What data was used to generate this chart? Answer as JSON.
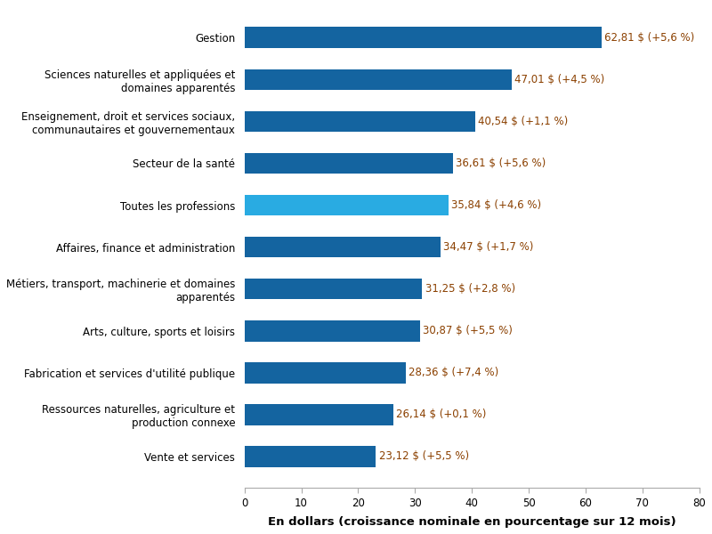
{
  "categories": [
    "Gestion",
    "Sciences naturelles et appliquées et\ndomaines apparentés",
    "Enseignement, droit et services sociaux,\ncommunautaires et gouvernementaux",
    "Secteur de la santé",
    "Toutes les professions",
    "Affaires, finance et administration",
    "Métiers, transport, machinerie et domaines\napparentés",
    "Arts, culture, sports et loisirs",
    "Fabrication et services d'utilité publique",
    "Ressources naturelles, agriculture et\nproduction connexe",
    "Vente et services"
  ],
  "values": [
    62.81,
    47.01,
    40.54,
    36.61,
    35.84,
    34.47,
    31.25,
    30.87,
    28.36,
    26.14,
    23.12
  ],
  "labels": [
    "62,81 $ (+5,6 %)",
    "47,01 $ (+4,5 %)",
    "40,54 $ (+1,1 %)",
    "36,61 $ (+5,6 %)",
    "35,84 $ (+4,6 %)",
    "34,47 $ (+1,7 %)",
    "31,25 $ (+2,8 %)",
    "30,87 $ (+5,5 %)",
    "28,36 $ (+7,4 %)",
    "26,14 $ (+0,1 %)",
    "23,12 $ (+5,5 %)"
  ],
  "bar_colors": [
    "#1464a0",
    "#1464a0",
    "#1464a0",
    "#1464a0",
    "#29abe2",
    "#1464a0",
    "#1464a0",
    "#1464a0",
    "#1464a0",
    "#1464a0",
    "#1464a0"
  ],
  "label_color": "#8B4000",
  "xlabel": "En dollars (croissance nominale en pourcentage sur 12 mois)",
  "xlim": [
    0,
    80
  ],
  "xticks": [
    0,
    10,
    20,
    30,
    40,
    50,
    60,
    70,
    80
  ],
  "background_color": "#ffffff",
  "label_fontsize": 8.5,
  "category_fontsize": 8.5,
  "xlabel_fontsize": 9.5,
  "bar_height": 0.5
}
